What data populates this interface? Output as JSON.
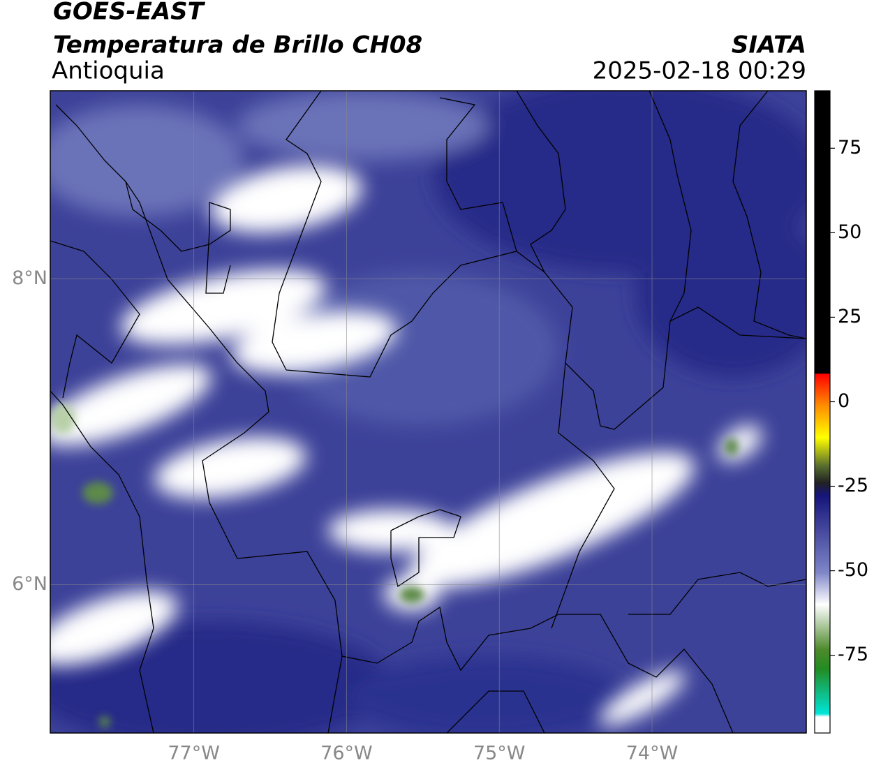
{
  "header": {
    "satellite": "GOES-EAST",
    "product": "Temperatura de Brillo CH08",
    "region": "Antioquia",
    "agency": "SIATA",
    "timestamp": "2025-02-18 00:29"
  },
  "map": {
    "xlim": [
      -77.94,
      -72.99
    ],
    "ylim": [
      5.03,
      9.23
    ],
    "xticks": [
      {
        "value": -77,
        "label": "77°W"
      },
      {
        "value": -76,
        "label": "76°W"
      },
      {
        "value": -75,
        "label": "75°W"
      },
      {
        "value": -74,
        "label": "74°W"
      }
    ],
    "yticks": [
      {
        "value": 6,
        "label": "6°N"
      },
      {
        "value": 8,
        "label": "8°N"
      }
    ],
    "grid": true
  },
  "colorbar": {
    "lim": [
      -98,
      92
    ],
    "ticks": [
      -75,
      -50,
      -25,
      0,
      25,
      50,
      75
    ]
  }
}
